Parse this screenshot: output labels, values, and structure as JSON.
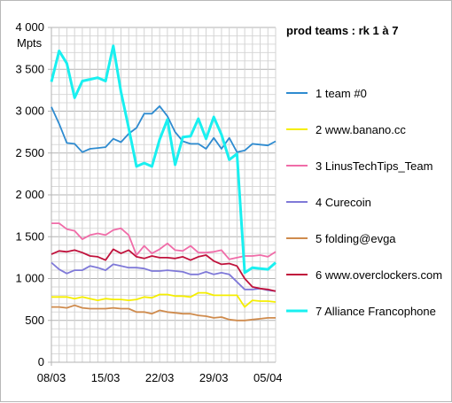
{
  "chart_data": {
    "type": "line",
    "title": "prod teams : rk 1 à 7",
    "ylabel": "Mpts",
    "ylim": [
      0,
      4000
    ],
    "yticks": [
      0,
      500,
      1000,
      1500,
      2000,
      2500,
      3000,
      3500,
      4000
    ],
    "ytick_labels": [
      "0",
      "500",
      "1 000",
      "1 500",
      "2 000",
      "2 500",
      "3 000",
      "3 500",
      "4 000"
    ],
    "xtick_labels": [
      "08/03",
      "15/03",
      "22/03",
      "29/03",
      "05/04"
    ],
    "grid": true,
    "legend_position": "right",
    "series": [
      {
        "name": "1 team #0",
        "color": "#2e8bd0",
        "values": [
          3050,
          2850,
          2620,
          2610,
          2510,
          2550,
          2560,
          2570,
          2670,
          2630,
          2730,
          2800,
          2970,
          2970,
          3060,
          2940,
          2750,
          2640,
          2610,
          2610,
          2550,
          2680,
          2550,
          2680,
          2510,
          2530,
          2610,
          2600,
          2590,
          2640
        ]
      },
      {
        "name": "2 www.banano.cc",
        "color": "#f5ee00",
        "values": [
          780,
          780,
          780,
          760,
          780,
          760,
          740,
          760,
          750,
          750,
          740,
          750,
          780,
          770,
          810,
          810,
          790,
          790,
          780,
          830,
          830,
          800,
          800,
          800,
          800,
          660,
          740,
          730,
          730,
          720
        ]
      },
      {
        "name": "3 LinusTechTips_Team",
        "color": "#f06ca8",
        "values": [
          1660,
          1660,
          1590,
          1570,
          1470,
          1520,
          1540,
          1520,
          1580,
          1600,
          1520,
          1280,
          1390,
          1300,
          1350,
          1420,
          1340,
          1330,
          1390,
          1310,
          1310,
          1320,
          1340,
          1230,
          1250,
          1270,
          1270,
          1280,
          1260,
          1320
        ]
      },
      {
        "name": "4 Curecoin",
        "color": "#7f79d8",
        "values": [
          1190,
          1110,
          1060,
          1100,
          1100,
          1150,
          1130,
          1100,
          1170,
          1150,
          1130,
          1130,
          1120,
          1090,
          1090,
          1100,
          1090,
          1080,
          1050,
          1050,
          1080,
          1050,
          1070,
          1050,
          960,
          870,
          870,
          880,
          860,
          850
        ]
      },
      {
        "name": "5 folding@evga",
        "color": "#cf8b4d",
        "values": [
          660,
          660,
          650,
          680,
          650,
          640,
          640,
          640,
          650,
          640,
          640,
          600,
          600,
          580,
          620,
          600,
          590,
          580,
          580,
          560,
          550,
          530,
          540,
          510,
          500,
          500,
          510,
          520,
          530,
          530
        ]
      },
      {
        "name": "6 www.overclockers.com",
        "color": "#c0123c",
        "values": [
          1290,
          1330,
          1320,
          1340,
          1310,
          1270,
          1260,
          1220,
          1350,
          1300,
          1340,
          1260,
          1240,
          1270,
          1250,
          1250,
          1240,
          1260,
          1220,
          1260,
          1280,
          1210,
          1170,
          1180,
          1150,
          1000,
          900,
          880,
          870,
          850
        ]
      },
      {
        "name": "7 Alliance Francophone",
        "color": "#19f0f0",
        "values": [
          3350,
          3720,
          3570,
          3160,
          3360,
          3380,
          3400,
          3360,
          3780,
          3230,
          2800,
          2340,
          2380,
          2340,
          2660,
          2900,
          2360,
          2690,
          2700,
          2910,
          2670,
          2930,
          2720,
          2420,
          2490,
          1070,
          1130,
          1120,
          1110,
          1190
        ]
      }
    ]
  }
}
